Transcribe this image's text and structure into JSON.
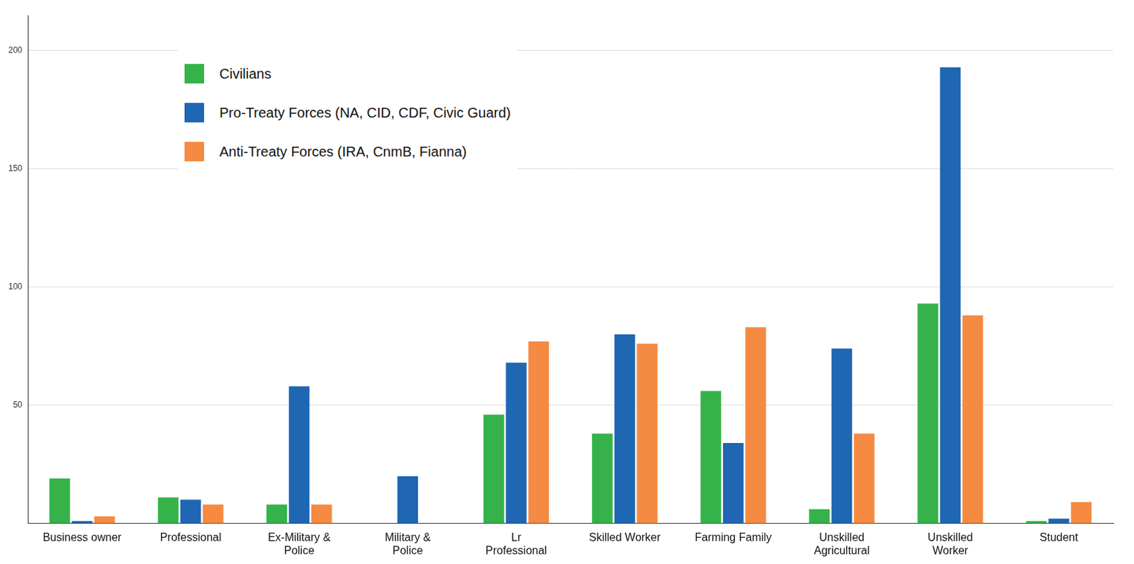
{
  "chart_data": {
    "type": "bar",
    "categories": [
      "Business owner",
      "Professional",
      "Ex-Military & Police",
      "Military & Police",
      "Lr Professional",
      "Skilled Worker",
      "Farming Family",
      "Unskilled Agricultural",
      "Unskilled Worker",
      "Student"
    ],
    "series": [
      {
        "name": "Civilians",
        "color": "#35b34a",
        "values": [
          19,
          11,
          8,
          0,
          46,
          38,
          56,
          6,
          93,
          1
        ]
      },
      {
        "name": "Pro-Treaty Forces (NA, CID, CDF, Civic Guard)",
        "color": "#1f66b3",
        "values": [
          1,
          10,
          58,
          20,
          68,
          80,
          34,
          74,
          193,
          2
        ]
      },
      {
        "name": "Anti-Treaty Forces (IRA, CnmB, Fianna)",
        "color": "#f58a42",
        "values": [
          3,
          8,
          8,
          0,
          77,
          76,
          83,
          38,
          88,
          9
        ]
      }
    ],
    "ylim": [
      0,
      215
    ],
    "yticks": [
      50,
      100,
      150,
      200
    ],
    "grid": true,
    "legend": "upper left"
  }
}
